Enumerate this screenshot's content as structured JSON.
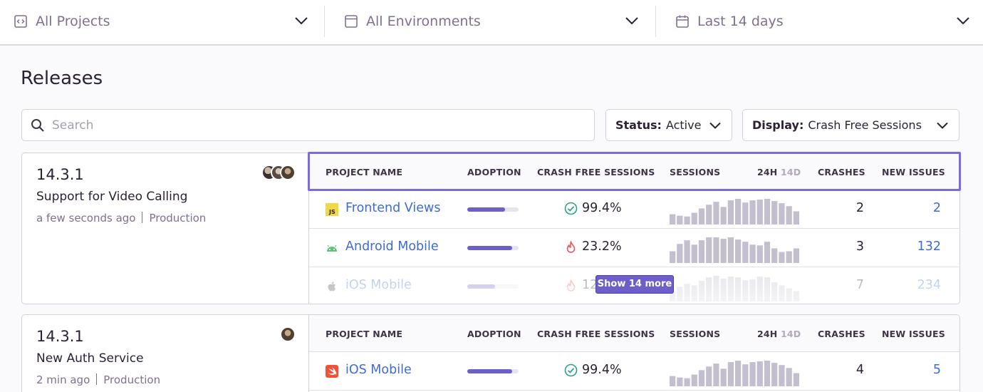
{
  "filters": {
    "projects": {
      "label": "All Projects",
      "icon": "code-brackets-icon"
    },
    "environments": {
      "label": "All Environments",
      "icon": "window-icon"
    },
    "period": {
      "label": "Last 14 days",
      "icon": "calendar-icon"
    }
  },
  "page_title": "Releases",
  "search": {
    "placeholder": "Search",
    "value": ""
  },
  "status_dropdown": {
    "key": "Status:",
    "value": "Active"
  },
  "display_dropdown": {
    "key": "Display:",
    "value": "Crash Free Sessions"
  },
  "table_headers": {
    "project_name": "PROJECT NAME",
    "adoption": "ADOPTION",
    "crash_free": "CRASH FREE SESSIONS",
    "sessions": "SESSIONS",
    "period_24h": "24H",
    "period_14d": "14D",
    "crashes": "CRASHES",
    "new_issues": "NEW ISSUES"
  },
  "show_more_label": "Show 14 more",
  "colors": {
    "accent": "#6c5fc7",
    "link": "#3e6bd6",
    "healthy": "#2ba185",
    "danger": "#f55459",
    "highlight_border": "#7b6ae0"
  },
  "releases": [
    {
      "version": "14.3.1",
      "title": "Support for Video Calling",
      "time": "a few seconds ago",
      "environment": "Production",
      "projects": [
        {
          "name": "Frontend Views",
          "icon": "javascript-icon",
          "adoption": 0.74,
          "crash_free": "99.4%",
          "status": "healthy",
          "crashes": "2",
          "new_issues": "2",
          "sessions": [
            14,
            12,
            11,
            16,
            22,
            27,
            31,
            24,
            33,
            35,
            30,
            33,
            34,
            35,
            32,
            29,
            25,
            18
          ]
        },
        {
          "name": "Android Mobile",
          "icon": "android-icon",
          "adoption": 0.88,
          "crash_free": "23.2%",
          "status": "danger",
          "crashes": "3",
          "new_issues": "132",
          "sessions": [
            16,
            26,
            31,
            25,
            31,
            35,
            35,
            33,
            35,
            32,
            29,
            25,
            24,
            29,
            20,
            15,
            16,
            20
          ]
        },
        {
          "name": "iOS Mobile",
          "icon": "apple-icon",
          "adoption": 0.54,
          "crash_free": "12",
          "status": "danger",
          "crashes": "7",
          "new_issues": "234",
          "sessions": [
            14,
            20,
            24,
            22,
            28,
            33,
            35,
            31,
            34,
            33,
            29,
            30,
            34,
            33,
            26,
            22,
            18,
            14
          ]
        }
      ]
    },
    {
      "version": "14.3.1",
      "title": "New Auth Service",
      "time": "2 min ago",
      "environment": "Production",
      "projects": [
        {
          "name": "iOS Mobile",
          "icon": "swift-icon",
          "adoption": 0.88,
          "crash_free": "99.4%",
          "status": "healthy",
          "crashes": "4",
          "new_issues": "5",
          "sessions": [
            14,
            12,
            11,
            16,
            22,
            27,
            31,
            24,
            33,
            35,
            30,
            33,
            34,
            35,
            32,
            29,
            25,
            18
          ]
        }
      ]
    }
  ]
}
